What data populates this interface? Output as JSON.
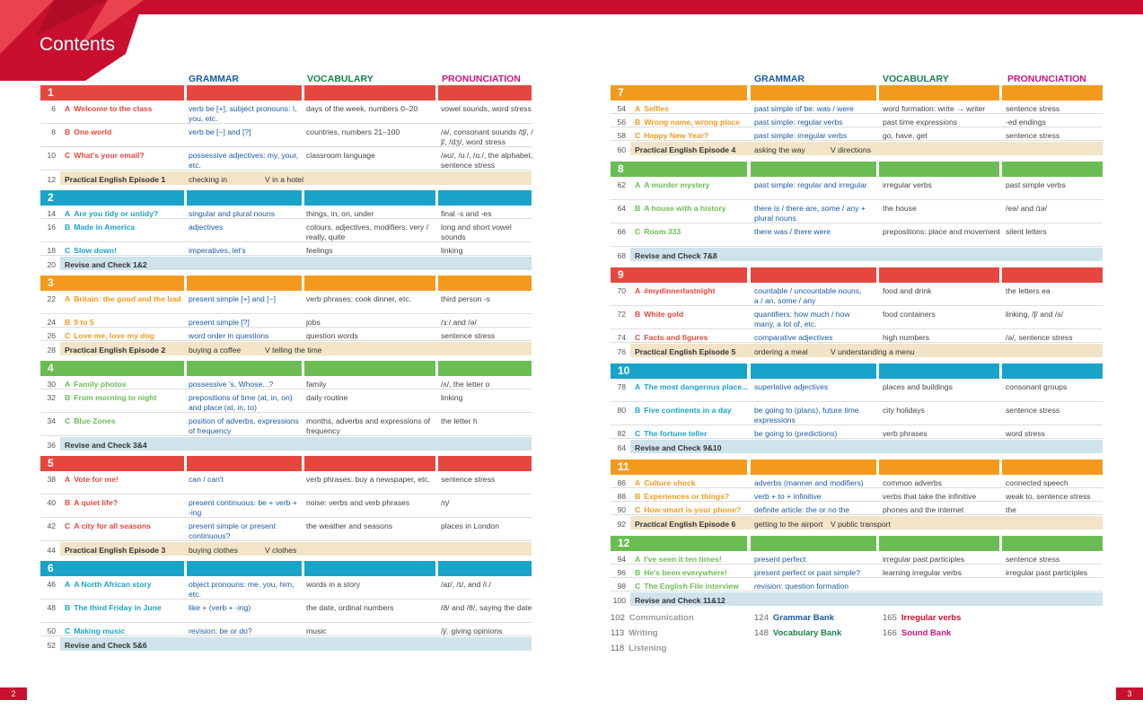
{
  "title": "Contents",
  "headers": {
    "grammar": "GRAMMAR",
    "vocabulary": "VOCABULARY",
    "pronunciation": "PRONUNCIATION"
  },
  "colors": {
    "red": "#e5473f",
    "blue": "#1aa3c8",
    "orange": "#f39a1e",
    "green": "#6bbd53",
    "teal": "#1aa3c8",
    "beige": "#f3e4c8",
    "lightblue": "#cfe3ec"
  },
  "left_units": [
    {
      "num": "1",
      "color": "#e5473f",
      "rows": [
        {
          "page": "6",
          "letter": "A",
          "lesson": "Welcome to the class",
          "grammar": "verb be [+], subject pronouns: I, you, etc.",
          "vocab": "days of the week, numbers 0–20",
          "pron": "vowel sounds, word stress",
          "h": 26
        },
        {
          "page": "8",
          "letter": "B",
          "lesson": "One world",
          "grammar": "verb be [−] and [?]",
          "vocab": "countries, numbers 21–100",
          "pron": "/ə/, consonant sounds /tʃ/, /ʃ/, /dʒ/, word stress",
          "h": 26
        },
        {
          "page": "10",
          "letter": "C",
          "lesson": "What's your email?",
          "grammar": "possessive adjectives: my, your, etc.",
          "vocab": "classroom language",
          "pron": "/əʊ/, /uː/, /ɑː/, the alphabet, sentence stress",
          "h": 26
        },
        {
          "page": "12",
          "letter": "",
          "lesson": "Practical English Episode 1",
          "grammar": "checking in",
          "vocab": "V in a hotel",
          "pron": "",
          "h": 15,
          "band": "beige"
        }
      ]
    },
    {
      "num": "2",
      "color": "#1aa3c8",
      "rows": [
        {
          "page": "14",
          "letter": "A",
          "lesson": "Are you tidy or untidy?",
          "grammar": "singular and plural nouns",
          "vocab": "things, in, on, under",
          "pron": "final -s and -es",
          "h": 15
        },
        {
          "page": "16",
          "letter": "B",
          "lesson": "Made in America",
          "grammar": "adjectives",
          "vocab": "colours, adjectives, modifiers: very / really, quite",
          "pron": "long and short vowel sounds",
          "h": 26
        },
        {
          "page": "18",
          "letter": "C",
          "lesson": "Slow down!",
          "grammar": "imperatives, let's",
          "vocab": "feelings",
          "pron": "linking",
          "h": 15
        },
        {
          "page": "20",
          "letter": "",
          "lesson": "Revise and Check 1&2",
          "grammar": "",
          "vocab": "",
          "pron": "",
          "h": 15,
          "band": "lightblue"
        }
      ]
    },
    {
      "num": "3",
      "color": "#f39a1e",
      "rows": [
        {
          "page": "22",
          "letter": "A",
          "lesson": "Britain: the good and the bad",
          "grammar": "present simple [+] and [−]",
          "vocab": "verb phrases: cook dinner, etc.",
          "pron": "third person -s",
          "h": 26
        },
        {
          "page": "24",
          "letter": "B",
          "lesson": "9 to 5",
          "grammar": "present simple [?]",
          "vocab": "jobs",
          "pron": "/ɜː/ and /ə/",
          "h": 15
        },
        {
          "page": "26",
          "letter": "C",
          "lesson": "Love me, love my dog",
          "grammar": "word order in questions",
          "vocab": "question words",
          "pron": "sentence stress",
          "h": 15
        },
        {
          "page": "28",
          "letter": "",
          "lesson": "Practical English Episode 2",
          "grammar": "buying a coffee",
          "vocab": "V telling the time",
          "pron": "",
          "h": 15,
          "band": "beige"
        }
      ]
    },
    {
      "num": "4",
      "color": "#6bbd53",
      "rows": [
        {
          "page": "30",
          "letter": "A",
          "lesson": "Family photos",
          "grammar": "possessive 's, Whose...?",
          "vocab": "family",
          "pron": "/ʌ/, the letter o",
          "h": 15
        },
        {
          "page": "32",
          "letter": "B",
          "lesson": "From morning to night",
          "grammar": "prepositions of time (at, in, on) and place (at, in, to)",
          "vocab": "daily routine",
          "pron": "linking",
          "h": 26
        },
        {
          "page": "34",
          "letter": "C",
          "lesson": "Blue Zones",
          "grammar": "position of adverbs, expressions of frequency",
          "vocab": "months, adverbs and expressions of frequency",
          "pron": "the letter h",
          "h": 26
        },
        {
          "page": "36",
          "letter": "",
          "lesson": "Revise and Check 3&4",
          "grammar": "",
          "vocab": "",
          "pron": "",
          "h": 15,
          "band": "lightblue"
        }
      ]
    },
    {
      "num": "5",
      "color": "#e5473f",
      "rows": [
        {
          "page": "38",
          "letter": "A",
          "lesson": "Vote for me!",
          "grammar": "can / can't",
          "vocab": "verb phrases: buy a newspaper, etc.",
          "pron": "sentence stress",
          "h": 26
        },
        {
          "page": "40",
          "letter": "B",
          "lesson": "A quiet life?",
          "grammar": "present continuous: be + verb + -ing",
          "vocab": "noise: verbs and verb phrases",
          "pron": "/ŋ/",
          "h": 26
        },
        {
          "page": "42",
          "letter": "C",
          "lesson": "A city for all seasons",
          "grammar": "present simple or present continuous?",
          "vocab": "the weather and seasons",
          "pron": "places in London",
          "h": 26
        },
        {
          "page": "44",
          "letter": "",
          "lesson": "Practical English Episode 3",
          "grammar": "buying clothes",
          "vocab": "V clothes",
          "pron": "",
          "h": 15,
          "band": "beige"
        }
      ]
    },
    {
      "num": "6",
      "color": "#1aa3c8",
      "rows": [
        {
          "page": "46",
          "letter": "A",
          "lesson": "A North African story",
          "grammar": "object pronouns: me, you, him, etc.",
          "vocab": "words in a story",
          "pron": "/aɪ/, /ɪ/, and /iː/",
          "h": 26
        },
        {
          "page": "48",
          "letter": "B",
          "lesson": "The third Friday in June",
          "grammar": "like + (verb + -ing)",
          "vocab": "the date, ordinal numbers",
          "pron": "/ð/ and /θ/, saying the date",
          "h": 26
        },
        {
          "page": "50",
          "letter": "C",
          "lesson": "Making music",
          "grammar": "revision: be or do?",
          "vocab": "music",
          "pron": "/j/, giving opinions",
          "h": 15
        },
        {
          "page": "52",
          "letter": "",
          "lesson": "Revise and Check 5&6",
          "grammar": "",
          "vocab": "",
          "pron": "",
          "h": 15,
          "band": "lightblue"
        }
      ]
    }
  ],
  "right_units": [
    {
      "num": "7",
      "color": "#f39a1e",
      "rows": [
        {
          "page": "54",
          "letter": "A",
          "lesson": "Selfies",
          "grammar": "past simple of be: was / were",
          "vocab": "word formation: write → writer",
          "pron": "sentence stress",
          "h": 15
        },
        {
          "page": "56",
          "letter": "B",
          "lesson": "Wrong name, wrong place",
          "grammar": "past simple: regular verbs",
          "vocab": "past time expressions",
          "pron": "-ed endings",
          "h": 15
        },
        {
          "page": "58",
          "letter": "C",
          "lesson": "Happy New Year?",
          "grammar": "past simple: irregular verbs",
          "vocab": "go, have, get",
          "pron": "sentence stress",
          "h": 15
        },
        {
          "page": "60",
          "letter": "",
          "lesson": "Practical English Episode 4",
          "grammar": "asking the way",
          "vocab": "V directions",
          "pron": "",
          "h": 15,
          "band": "beige"
        }
      ]
    },
    {
      "num": "8",
      "color": "#6bbd53",
      "rows": [
        {
          "page": "62",
          "letter": "A",
          "lesson": "A murder mystery",
          "grammar": "past simple: regular and irregular",
          "vocab": "irregular verbs",
          "pron": "past simple verbs",
          "h": 26
        },
        {
          "page": "64",
          "letter": "B",
          "lesson": "A house with a history",
          "grammar": "there is / there are, some / any + plural nouns",
          "vocab": "the house",
          "pron": "/eə/ and /ɪə/",
          "h": 26
        },
        {
          "page": "66",
          "letter": "C",
          "lesson": "Room 333",
          "grammar": "there was / there were",
          "vocab": "prepositions: place and movement",
          "pron": "silent letters",
          "h": 26
        },
        {
          "page": "68",
          "letter": "",
          "lesson": "Revise and Check 7&8",
          "grammar": "",
          "vocab": "",
          "pron": "",
          "h": 15,
          "band": "lightblue"
        }
      ]
    },
    {
      "num": "9",
      "color": "#e5473f",
      "rows": [
        {
          "page": "70",
          "letter": "A",
          "lesson": "#mydinnerlastnight",
          "grammar": "countable / uncountable nouns, a / an, some / any",
          "vocab": "food and drink",
          "pron": "the letters ea",
          "h": 26
        },
        {
          "page": "72",
          "letter": "B",
          "lesson": "White gold",
          "grammar": "quantifiers: how much / how many, a lot of, etc.",
          "vocab": "food containers",
          "pron": "linking, /ʃ/ and /s/",
          "h": 26
        },
        {
          "page": "74",
          "letter": "C",
          "lesson": "Facts and figures",
          "grammar": "comparative adjectives",
          "vocab": "high numbers",
          "pron": "/ə/, sentence stress",
          "h": 15
        },
        {
          "page": "76",
          "letter": "",
          "lesson": "Practical English Episode 5",
          "grammar": "ordering a meal",
          "vocab": "V understanding a menu",
          "pron": "",
          "h": 15,
          "band": "beige"
        }
      ]
    },
    {
      "num": "10",
      "color": "#1aa3c8",
      "rows": [
        {
          "page": "78",
          "letter": "A",
          "lesson": "The most dangerous place...",
          "grammar": "superlative adjectives",
          "vocab": "places and buildings",
          "pron": "consonant groups",
          "h": 26
        },
        {
          "page": "80",
          "letter": "B",
          "lesson": "Five continents in a day",
          "grammar": "be going to (plans), future time expressions",
          "vocab": "city holidays",
          "pron": "sentence stress",
          "h": 26
        },
        {
          "page": "82",
          "letter": "C",
          "lesson": "The fortune teller",
          "grammar": "be going to (predictions)",
          "vocab": "verb phrases",
          "pron": "word stress",
          "h": 15
        },
        {
          "page": "84",
          "letter": "",
          "lesson": "Revise and Check 9&10",
          "grammar": "",
          "vocab": "",
          "pron": "",
          "h": 15,
          "band": "lightblue"
        }
      ]
    },
    {
      "num": "11",
      "color": "#f39a1e",
      "rows": [
        {
          "page": "86",
          "letter": "A",
          "lesson": "Culture shock",
          "grammar": "adverbs (manner and modifiers)",
          "vocab": "common adverbs",
          "pron": "connected speech",
          "h": 15
        },
        {
          "page": "88",
          "letter": "B",
          "lesson": "Experiences or things?",
          "grammar": "verb + to + infinitive",
          "vocab": "verbs that take the infinitive",
          "pron": "weak to, sentence stress",
          "h": 15
        },
        {
          "page": "90",
          "letter": "C",
          "lesson": "How smart is your phone?",
          "grammar": "definite article: the or no the",
          "vocab": "phones and the internet",
          "pron": "the",
          "h": 15
        },
        {
          "page": "92",
          "letter": "",
          "lesson": "Practical English Episode 6",
          "grammar": "getting to the airport",
          "vocab": "V public transport",
          "pron": "",
          "h": 15,
          "band": "beige"
        }
      ]
    },
    {
      "num": "12",
      "color": "#6bbd53",
      "rows": [
        {
          "page": "94",
          "letter": "A",
          "lesson": "I've seen it ten times!",
          "grammar": "present perfect",
          "vocab": "irregular past participles",
          "pron": "sentence stress",
          "h": 15
        },
        {
          "page": "96",
          "letter": "B",
          "lesson": "He's been everywhere!",
          "grammar": "present perfect or past simple?",
          "vocab": "learning irregular verbs",
          "pron": "irregular past participles",
          "h": 15
        },
        {
          "page": "98",
          "letter": "C",
          "lesson": "The English File interview",
          "grammar": "revision: question formation",
          "vocab": "",
          "pron": "",
          "h": 15
        },
        {
          "page": "100",
          "letter": "",
          "lesson": "Revise and Check 11&12",
          "grammar": "",
          "vocab": "",
          "pron": "",
          "h": 15,
          "band": "lightblue"
        }
      ]
    }
  ],
  "footer_links": [
    {
      "page": "102",
      "label": "Communication",
      "color": "#9a9a9a"
    },
    {
      "page": "113",
      "label": "Writing",
      "color": "#9a9a9a"
    },
    {
      "page": "118",
      "label": "Listening",
      "color": "#9a9a9a"
    },
    {
      "page": "124",
      "label": "Grammar Bank",
      "color": "#1a5aa6"
    },
    {
      "page": "148",
      "label": "Vocabulary Bank",
      "color": "#17824a"
    },
    {
      "page": "165",
      "label": "Irregular verbs",
      "color": "#c8102e"
    },
    {
      "page": "166",
      "label": "Sound Bank",
      "color": "#c8187f"
    }
  ],
  "page_numbers": {
    "left": "2",
    "right": "3"
  }
}
